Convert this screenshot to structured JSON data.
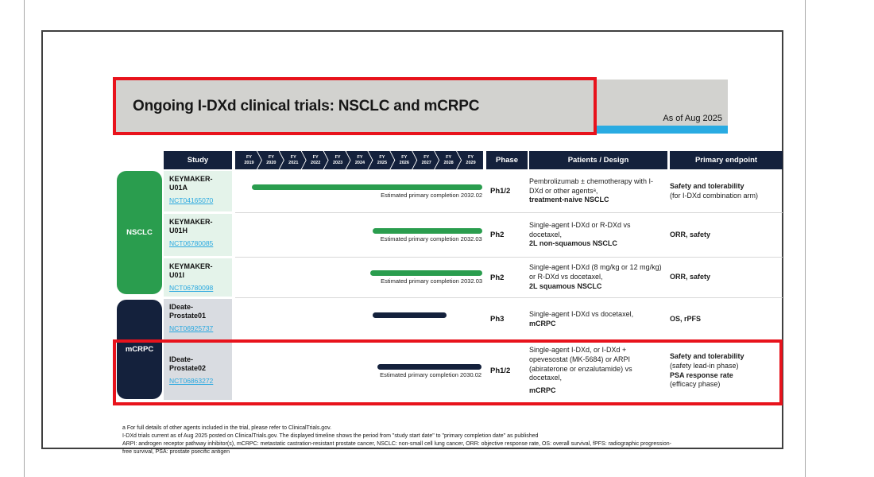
{
  "page": {
    "title": "Ongoing I-DXd clinical trials: NSCLC and mCRPC",
    "as_of_label": "As of Aug 2025"
  },
  "colors": {
    "navy": "#14213c",
    "green": "#2a9d4e",
    "light_green_cell": "#e4f3ea",
    "light_gray_cell": "#d9dce1",
    "banner_gray": "#d2d2cf",
    "accent_blue": "#29abe2",
    "highlight_red": "#e8131c",
    "link_blue": "#29a8e0"
  },
  "table": {
    "headers": {
      "study": "Study",
      "phase": "Phase",
      "patients": "Patients / Design",
      "endpoint": "Primary endpoint"
    },
    "timeline": {
      "fy_label": "FY",
      "years": [
        "2019",
        "2020",
        "2021",
        "2022",
        "2023",
        "2024",
        "2025",
        "2026",
        "2027",
        "2028",
        "2029"
      ]
    },
    "groups": [
      {
        "label": "NSCLC"
      },
      {
        "label": "mCRPC"
      }
    ],
    "rows": [
      {
        "study_line1": "KEYMAKER-",
        "study_line2": "U01A",
        "nct": "NCT04165070",
        "phase": "Ph1/2",
        "bar": {
          "color": "#2a9d4e",
          "left_pct": 6.7,
          "width_pct": 93.0,
          "note": "Estimated primary completion 2032.02"
        },
        "design_main": "Pembrolizumab ± chemotherapy with I-DXd or other agentsᵃ,",
        "design_bold": "treatment-naive NSCLC",
        "endpoint_bold": "Safety and tolerability",
        "endpoint_note": "(for I-DXd combination arm)"
      },
      {
        "study_line1": "KEYMAKER-",
        "study_line2": "U01H",
        "nct": "NCT06780085",
        "phase": "Ph2",
        "bar": {
          "color": "#2a9d4e",
          "left_pct": 55.4,
          "width_pct": 44.2,
          "note": "Estimated primary completion 2032.03"
        },
        "design_main": "Single-agent I-DXd or R-DXd vs docetaxel,",
        "design_bold": "2L non-squamous NSCLC",
        "endpoint_bold": "ORR, safety"
      },
      {
        "study_line1": "KEYMAKER-",
        "study_line2": "U01I",
        "nct": "NCT06780098",
        "phase": "Ph2",
        "bar": {
          "color": "#2a9d4e",
          "left_pct": 54.5,
          "width_pct": 45.2,
          "note": "Estimated primary completion 2032.03"
        },
        "design_main": "Single-agent I-DXd (8 mg/kg or 12 mg/kg) or R-DXd vs docetaxel,",
        "design_bold": "2L squamous NSCLC",
        "endpoint_bold": "ORR, safety"
      },
      {
        "study_line1": "IDeate-",
        "study_line2": "Prostate01",
        "nct": "NCT06925737",
        "phase": "Ph3",
        "bar": {
          "color": "#14213c",
          "left_pct": 55.4,
          "width_pct": 29.8,
          "note": ""
        },
        "design_main": "Single-agent I-DXd vs docetaxel,",
        "design_bold": "mCRPC",
        "endpoint_bold": "OS, rPFS"
      },
      {
        "study_line1": "IDeate-",
        "study_line2": "Prostate02",
        "nct": "NCT06863272",
        "phase": "Ph1/2",
        "bar": {
          "color": "#14213c",
          "left_pct": 57.4,
          "width_pct": 42.0,
          "note": "Estimated primary completion 2030.02"
        },
        "design_main": "Single-agent I-DXd, or I-DXd + opevesostat (MK-5684) or ARPI (abiraterone or enzalutamide) vs docetaxel,",
        "design_bold": "mCRPC",
        "endpoint_bold": "Safety and tolerability",
        "endpoint_note": "(safety lead-in phase)",
        "endpoint_bold2": "PSA response rate",
        "endpoint_note2": "(efficacy phase)"
      }
    ]
  },
  "footnotes": [
    "a For full details of other agents included in the trial, please refer to ClinicalTrials.gov.",
    "I-DXd trials current as of Aug 2025 posted on ClinicalTrials.gov.  The displayed timeline shows the period from \"study start date\" to \"primary completion date\" as published",
    "ARPI: androgen receptor pathway inhibitor(s), mCRPC: metastatic castration-resistant prostate cancer, NSCLC: non-small cell lung cancer, ORR: objective response rate, OS: overall survival, fPFS: radiographic progression-",
    "free survival, PSA: prostate psecific antigen"
  ]
}
